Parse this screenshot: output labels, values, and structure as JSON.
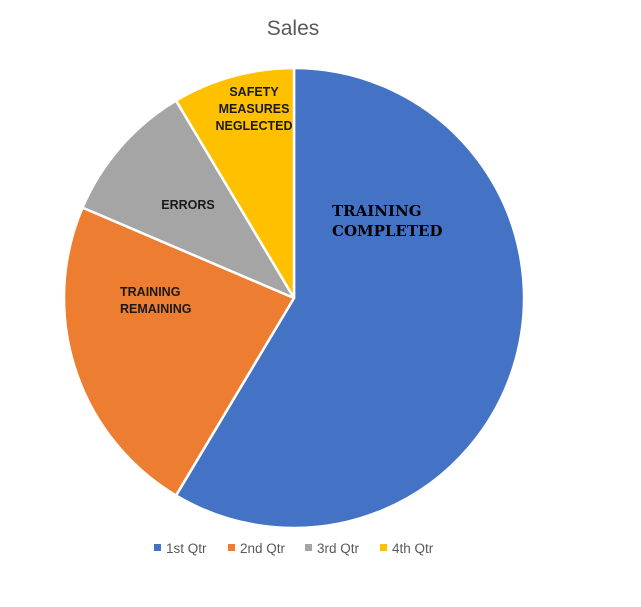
{
  "chart_data": {
    "type": "pie",
    "title": "Sales",
    "categories": [
      "1st Qtr",
      "2nd Qtr",
      "3rd Qtr",
      "4th Qtr"
    ],
    "values": [
      8.2,
      3.2,
      1.4,
      1.2
    ],
    "slice_labels": [
      [
        "TRAINING",
        "COMPLETED"
      ],
      [
        "TRAINING",
        "REMAINING"
      ],
      [
        "ERRORS"
      ],
      [
        "SAFETY",
        "MEASURES",
        "NEGLECTED"
      ]
    ],
    "colors": [
      "#4472C4",
      "#ED7D31",
      "#A5A5A5",
      "#FFC000"
    ],
    "legend_position": "bottom"
  }
}
